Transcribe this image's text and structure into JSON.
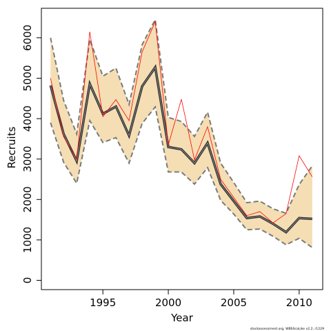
{
  "chart_data": {
    "type": "line",
    "title": "",
    "xlabel": "Year",
    "ylabel": "Recruits",
    "xlim": [
      1990.3,
      2011.8
    ],
    "ylim": [
      -230,
      6730
    ],
    "x_ticks": [
      1995,
      2000,
      2005,
      2010
    ],
    "y_ticks": [
      0,
      1000,
      2000,
      3000,
      4000,
      5000,
      6000
    ],
    "grid": false,
    "legend": "none",
    "colors": {
      "band_fill": "#f5deb3",
      "band_edge": "#7a7a7a",
      "estimate_outer": "#2f2f2f",
      "estimate_inner": "#8c8c8c",
      "observed": "#ff0000"
    },
    "x": [
      1991,
      1992,
      1993,
      1994,
      1995,
      1996,
      1997,
      1998,
      1999,
      2000,
      2001,
      2002,
      2003,
      2004,
      2005,
      2006,
      2007,
      2008,
      2009,
      2010,
      2011
    ],
    "series": [
      {
        "role": "estimate",
        "values": [
          4820,
          3620,
          2950,
          4860,
          4120,
          4300,
          3580,
          4800,
          5270,
          3300,
          3240,
          2900,
          3400,
          2380,
          1960,
          1540,
          1580,
          1400,
          1190,
          1540,
          1520
        ]
      },
      {
        "role": "upper-bound",
        "values": [
          6000,
          4450,
          3620,
          5960,
          5050,
          5250,
          4350,
          5830,
          6450,
          4030,
          3930,
          3560,
          4160,
          2900,
          2420,
          1920,
          1960,
          1770,
          1660,
          2370,
          2830
        ]
      },
      {
        "role": "lower-bound",
        "values": [
          3900,
          2920,
          2400,
          3950,
          3410,
          3530,
          2900,
          3880,
          4290,
          2680,
          2680,
          2380,
          2790,
          1980,
          1640,
          1250,
          1270,
          1090,
          880,
          1040,
          810
        ]
      },
      {
        "role": "observed",
        "values": [
          5000,
          3550,
          3000,
          6150,
          4050,
          4470,
          3950,
          5650,
          6400,
          3350,
          4480,
          2980,
          3800,
          2500,
          2050,
          1600,
          1700,
          1420,
          1650,
          3080,
          2560
        ]
      }
    ]
  },
  "footer_text": "stockassessment.org, WBSScaLike  v2.2, r1229"
}
